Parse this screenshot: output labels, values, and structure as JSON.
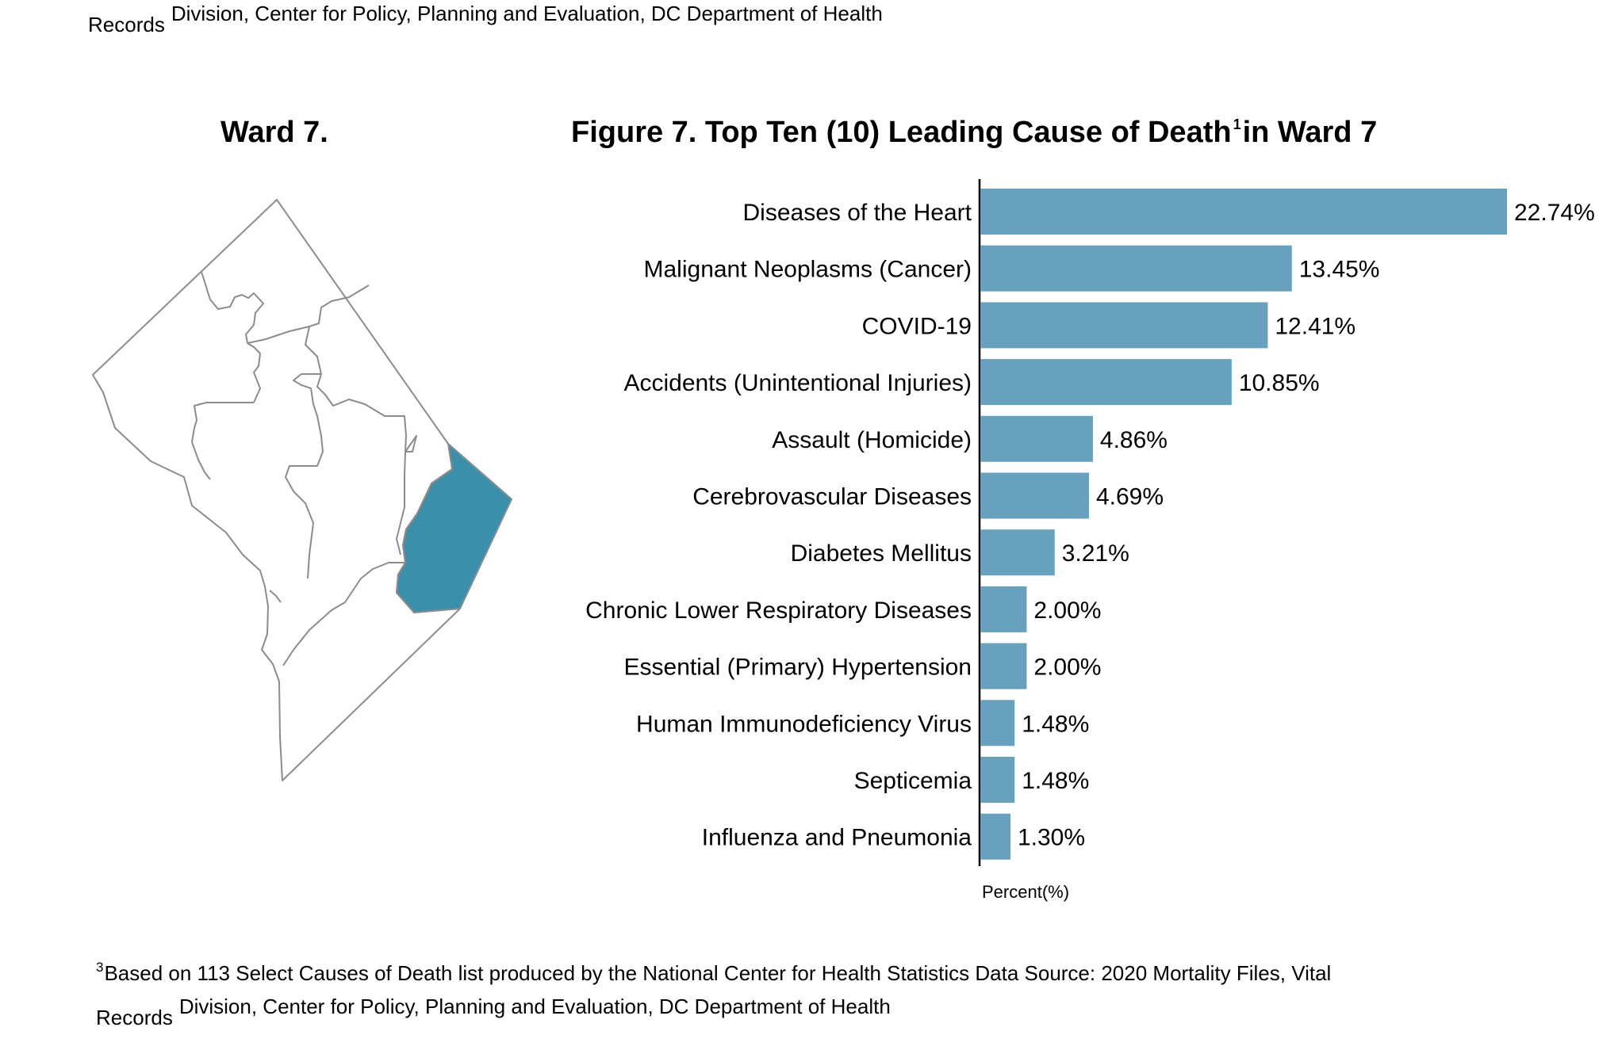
{
  "header": {
    "records_word": "Records",
    "source_line": "Division, Center for Policy, Planning and Evaluation, DC Department of Health"
  },
  "map": {
    "title": "Ward 7.",
    "highlight_color": "#3a8fab",
    "outline_color": "#8c8c8c"
  },
  "chart_data": {
    "type": "bar",
    "orientation": "horizontal",
    "title": "Figure 7. Top Ten (10) Leading Cause of Death",
    "title_superscript": "1",
    "title_suffix": "in Ward 7",
    "xlabel": "Percent(%)",
    "ylabel": "",
    "xlim": [
      0,
      25
    ],
    "grid": false,
    "bar_color": "#67a1be",
    "categories": [
      "Diseases of the Heart",
      "Malignant Neoplasms (Cancer)",
      "COVID-19",
      "Accidents (Unintentional Injuries)",
      "Assault (Homicide)",
      "Cerebrovascular Diseases",
      "Diabetes Mellitus",
      "Chronic Lower Respiratory Diseases",
      "Essential (Primary) Hypertension",
      "Human Immunodeficiency Virus",
      "Septicemia",
      "Influenza and Pneumonia"
    ],
    "values": [
      22.74,
      13.45,
      12.41,
      10.85,
      4.86,
      4.69,
      3.21,
      2.0,
      2.0,
      1.48,
      1.48,
      1.3
    ],
    "data_labels": [
      "22.74%",
      "13.45%",
      "12.41%",
      "10.85%",
      "4.86%",
      "4.69%",
      "3.21%",
      "2.00%",
      "2.00%",
      "1.48%",
      "1.48%",
      "1.30%"
    ]
  },
  "footnote": {
    "marker": "3",
    "line1": "Based on 113 Select Causes of Death list produced by the National Center for Health Statistics Data Source: 2020 Mortality Files, Vital",
    "records_word": "Records",
    "line2": "Division, Center for Policy, Planning and Evaluation, DC Department of Health"
  }
}
